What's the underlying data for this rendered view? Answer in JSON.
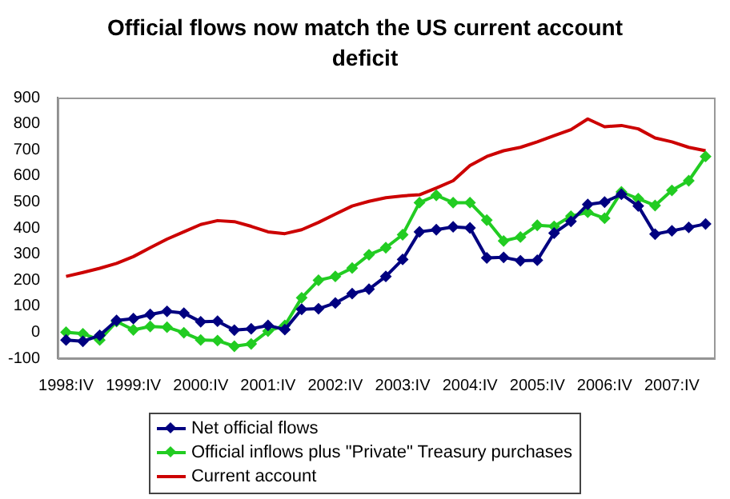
{
  "chart_data": {
    "type": "line",
    "title": "Official flows now match the US current account deficit",
    "categories": [
      "1998:IV",
      null,
      null,
      null,
      "1999:IV",
      null,
      null,
      null,
      "2000:IV",
      null,
      null,
      null,
      "2001:IV",
      null,
      null,
      null,
      "2002:IV",
      null,
      null,
      null,
      "2003:IV",
      null,
      null,
      null,
      "2004:IV",
      null,
      null,
      null,
      "2005:IV",
      null,
      null,
      null,
      "2006:IV",
      null,
      null,
      null,
      "2007:IV",
      null,
      null
    ],
    "series": [
      {
        "name": "Net official flows",
        "color": "#000080",
        "marker": "diamond",
        "values": [
          -30,
          -35,
          -12,
          45,
          52,
          68,
          80,
          73,
          40,
          42,
          8,
          13,
          26,
          10,
          88,
          90,
          112,
          148,
          165,
          214,
          279,
          385,
          393,
          404,
          400,
          285,
          287,
          274,
          276,
          380,
          425,
          490,
          499,
          529,
          484,
          376,
          389,
          402,
          415
        ]
      },
      {
        "name": "Official inflows plus \"Private\" Treasury purchases",
        "color": "#22cc22",
        "marker": "diamond",
        "values": [
          0,
          -6,
          -30,
          41,
          9,
          22,
          19,
          -2,
          -30,
          -32,
          -54,
          -45,
          4,
          26,
          132,
          199,
          214,
          246,
          297,
          324,
          374,
          497,
          525,
          497,
          497,
          430,
          350,
          365,
          410,
          406,
          445,
          460,
          437,
          538,
          512,
          486,
          544,
          581,
          674
        ]
      },
      {
        "name": "Current account",
        "color": "#cc0000",
        "marker": "none",
        "values": [
          214,
          229,
          245,
          264,
          290,
          324,
          357,
          385,
          413,
          428,
          424,
          406,
          385,
          378,
          393,
          421,
          453,
          484,
          502,
          516,
          523,
          527,
          553,
          581,
          639,
          674,
          696,
          709,
          730,
          754,
          777,
          818,
          788,
          793,
          780,
          745,
          730,
          709,
          696
        ]
      }
    ],
    "ylim": [
      -100,
      900
    ],
    "yticks": [
      -100,
      0,
      100,
      200,
      300,
      400,
      500,
      600,
      700,
      800,
      900
    ],
    "grid": false,
    "legend": "bottom"
  }
}
